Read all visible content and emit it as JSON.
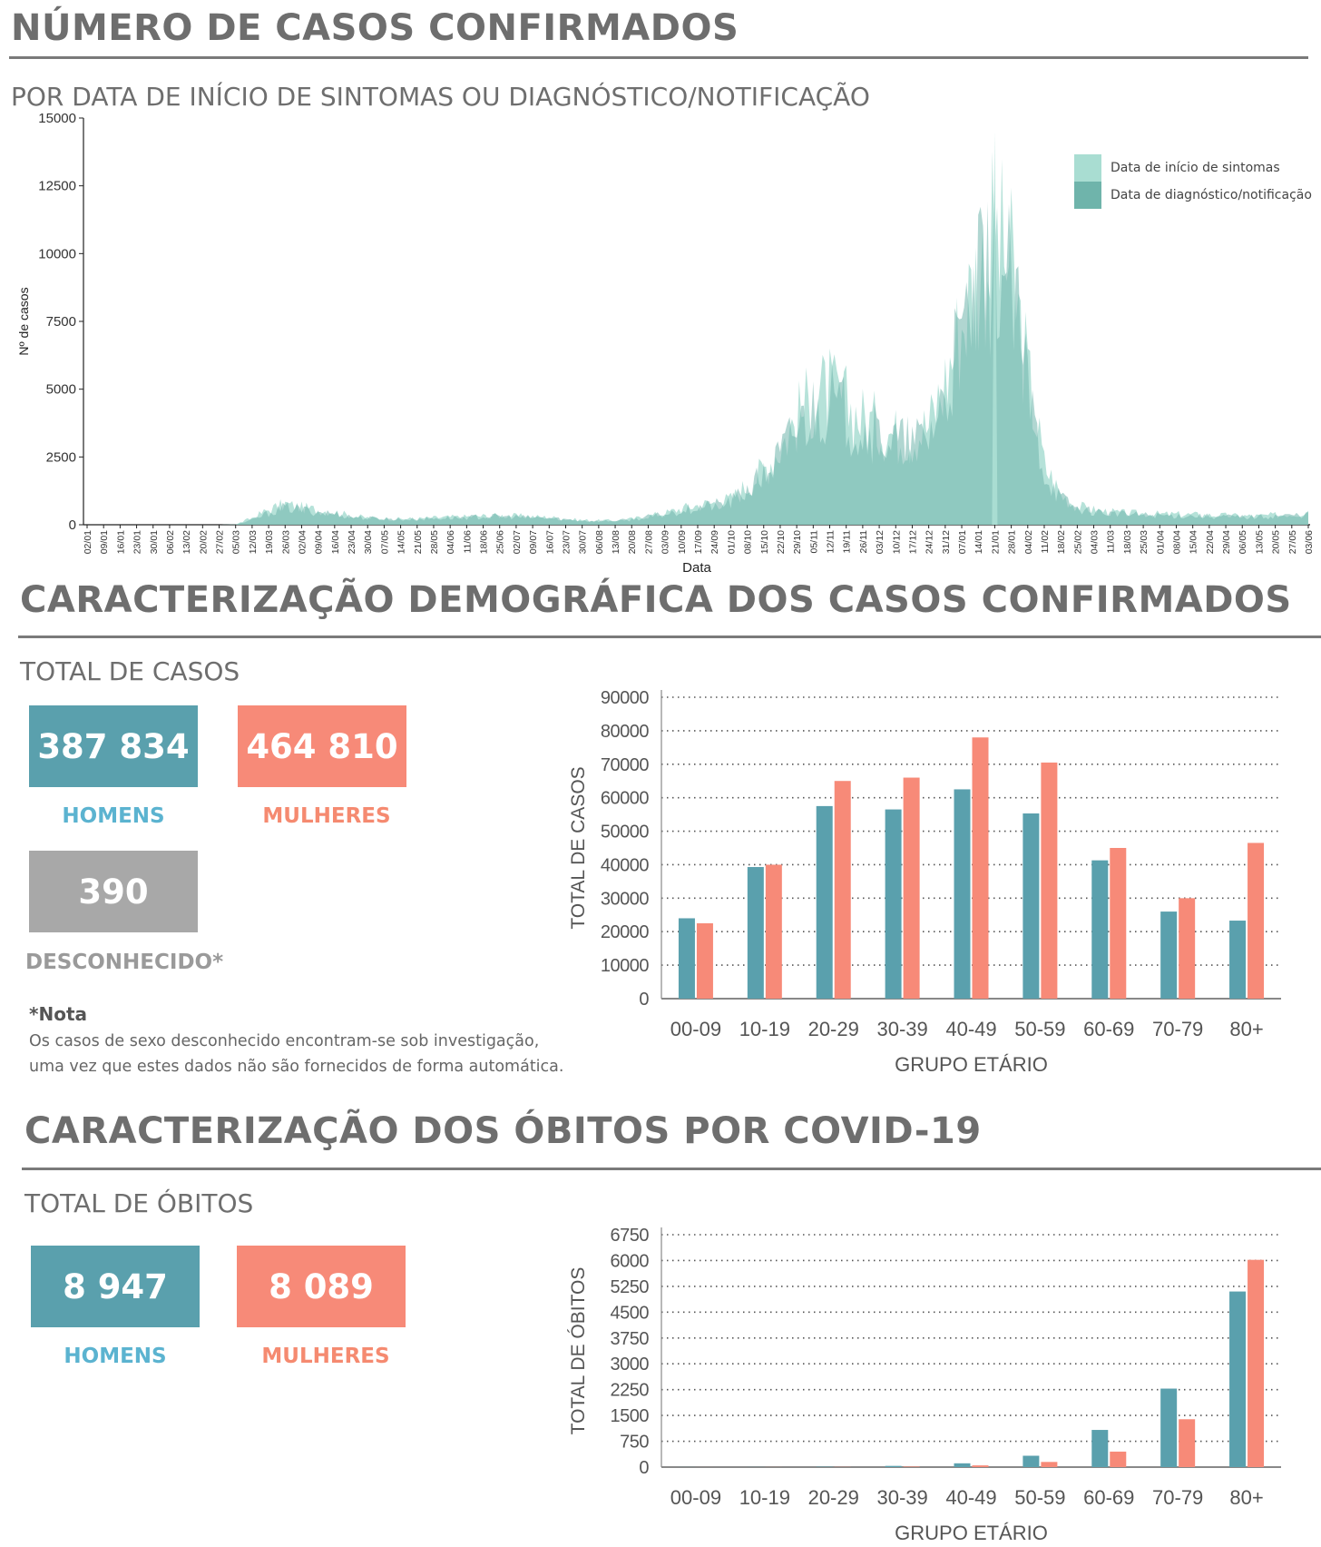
{
  "sections": {
    "cases_title": "NÚMERO DE CASOS CONFIRMADOS",
    "cases_subtitle": "POR DATA DE INÍCIO DE SINTOMAS OU DIAGNÓSTICO/NOTIFICAÇÃO",
    "demo_title": "CARACTERIZAÇÃO DEMOGRÁFICA DOS CASOS CONFIRMADOS",
    "demo_subtitle": "TOTAL DE CASOS",
    "deaths_title": "CARACTERIZAÇÃO DOS ÓBITOS POR COVID-19",
    "deaths_subtitle": "TOTAL DE ÓBITOS"
  },
  "colors": {
    "men": "#5aa0ad",
    "women": "#f78a78",
    "unknown": "#a8a8a8",
    "men_label": "#5bb3d0",
    "women_label": "#f58a70",
    "unknown_label": "#9a9a9a",
    "onset": "#a9ddd2",
    "diagnosis": "#6fb4ab"
  },
  "cases_totals": {
    "men_value": "387 834",
    "men_label": "HOMENS",
    "women_value": "464 810",
    "women_label": "MULHERES",
    "unknown_value": "390",
    "unknown_label": "DESCONHECIDO*"
  },
  "note": {
    "title": "*Nota",
    "line1": "Os casos de sexo desconhecido encontram-se sob investigação,",
    "line2": "uma vez que estes dados não são fornecidos de forma automática."
  },
  "deaths_totals": {
    "men_value": "8 947",
    "men_label": "HOMENS",
    "women_value": "8 089",
    "women_label": "MULHERES"
  },
  "chart_data": [
    {
      "type": "area",
      "ylabel": "Nº de casos",
      "xlabel": "Data",
      "ylim": [
        0,
        15000
      ],
      "yticks": [
        0,
        2500,
        5000,
        7500,
        10000,
        12500,
        15000
      ],
      "legend_position": "top-right",
      "x_ticks": [
        "02/01",
        "09/01",
        "16/01",
        "23/01",
        "30/01",
        "06/02",
        "13/02",
        "20/02",
        "27/02",
        "05/03",
        "12/03",
        "19/03",
        "26/03",
        "02/04",
        "09/04",
        "16/04",
        "23/04",
        "30/04",
        "07/05",
        "14/05",
        "21/05",
        "28/05",
        "04/06",
        "11/06",
        "18/06",
        "25/06",
        "02/07",
        "09/07",
        "16/07",
        "23/07",
        "30/07",
        "06/08",
        "13/08",
        "20/08",
        "27/08",
        "03/09",
        "10/09",
        "17/09",
        "24/09",
        "01/10",
        "08/10",
        "15/10",
        "22/10",
        "29/10",
        "05/11",
        "12/11",
        "19/11",
        "26/11",
        "03/12",
        "10/12",
        "17/12",
        "24/12",
        "31/12",
        "07/01",
        "14/01",
        "21/01",
        "28/01",
        "04/02",
        "11/02",
        "18/02",
        "25/02",
        "04/03",
        "11/03",
        "18/03",
        "25/03",
        "01/04",
        "08/04",
        "15/04",
        "22/04",
        "29/04",
        "06/05",
        "13/05",
        "20/05",
        "27/05",
        "03/06"
      ],
      "series": [
        {
          "name": "Data de início de sintomas",
          "values": [
            0,
            0,
            0,
            0,
            0,
            0,
            0,
            0,
            0,
            10,
            300,
            650,
            900,
            750,
            650,
            550,
            400,
            300,
            280,
            250,
            260,
            300,
            330,
            350,
            380,
            400,
            380,
            350,
            320,
            250,
            200,
            180,
            190,
            250,
            380,
            500,
            700,
            850,
            950,
            1100,
            1700,
            2400,
            3400,
            4600,
            5600,
            5800,
            5200,
            4600,
            4300,
            3900,
            3900,
            4300,
            6200,
            8800,
            11000,
            12500,
            11000,
            6500,
            2600,
            1300,
            800,
            650,
            550,
            500,
            480,
            460,
            450,
            440,
            420,
            400,
            380,
            380,
            420,
            460,
            520
          ]
        },
        {
          "name": "Data de diagnóstico/notificação",
          "values": [
            0,
            0,
            0,
            0,
            0,
            0,
            0,
            0,
            0,
            10,
            200,
            500,
            750,
            650,
            550,
            480,
            350,
            280,
            260,
            230,
            240,
            270,
            300,
            320,
            350,
            360,
            340,
            310,
            290,
            230,
            180,
            160,
            170,
            220,
            340,
            450,
            620,
            760,
            850,
            980,
            1500,
            2100,
            3000,
            4200,
            5000,
            5300,
            4700,
            4200,
            3900,
            3600,
            3500,
            3900,
            5600,
            8000,
            10000,
            11500,
            10200,
            5900,
            2300,
            1150,
            700,
            580,
            500,
            450,
            430,
            410,
            400,
            390,
            370,
            360,
            340,
            340,
            380,
            410,
            460
          ]
        }
      ],
      "annotations": {
        "peak_value": 14500,
        "peak_label": "21/01"
      }
    },
    {
      "type": "bar",
      "ylabel": "TOTAL DE CASOS",
      "xlabel": "GRUPO ETÁRIO",
      "ylim": [
        0,
        90000
      ],
      "yticks": [
        0,
        10000,
        20000,
        30000,
        40000,
        50000,
        60000,
        70000,
        80000,
        90000
      ],
      "categories": [
        "00-09",
        "10-19",
        "20-29",
        "30-39",
        "40-49",
        "50-59",
        "60-69",
        "70-79",
        "80+"
      ],
      "series": [
        {
          "values": [
            24000,
            39300,
            57500,
            56500,
            62500,
            55300,
            41300,
            26000,
            23300
          ]
        },
        {
          "values": [
            22500,
            40000,
            65000,
            66000,
            78000,
            70500,
            45000,
            30000,
            46500
          ]
        }
      ]
    },
    {
      "type": "bar",
      "ylabel": "TOTAL DE ÓBITOS",
      "xlabel": "GRUPO ETÁRIO",
      "ylim": [
        0,
        6750
      ],
      "yticks": [
        0,
        750,
        1500,
        2250,
        3000,
        3750,
        4500,
        5250,
        6000,
        6750
      ],
      "categories": [
        "00-09",
        "10-19",
        "20-29",
        "30-39",
        "40-49",
        "50-59",
        "60-69",
        "70-79",
        "80+"
      ],
      "series": [
        {
          "values": [
            2,
            3,
            10,
            35,
            110,
            330,
            1080,
            2280,
            5100
          ]
        },
        {
          "values": [
            1,
            2,
            5,
            15,
            50,
            150,
            450,
            1390,
            6020
          ]
        }
      ]
    }
  ]
}
